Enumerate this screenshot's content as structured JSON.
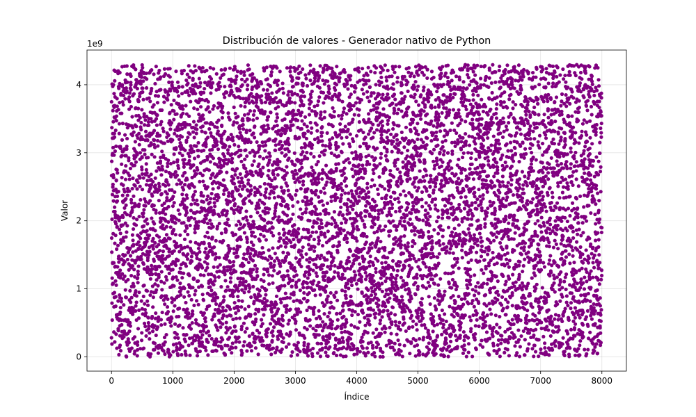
{
  "chart_data": {
    "type": "scatter",
    "title": "Distribución de valores - Generador nativo de Python",
    "xlabel": "Índice",
    "ylabel": "Valor",
    "y_offset_label": "1e9",
    "xlim": [
      -400,
      8400
    ],
    "ylim": [
      -210000000,
      4510000000
    ],
    "x_ticks": [
      0,
      1000,
      2000,
      3000,
      4000,
      5000,
      6000,
      7000,
      8000
    ],
    "x_tick_labels": [
      "0",
      "1000",
      "2000",
      "3000",
      "4000",
      "5000",
      "6000",
      "7000",
      "8000"
    ],
    "y_ticks": [
      0,
      1000000000,
      2000000000,
      3000000000,
      4000000000
    ],
    "y_tick_labels": [
      "0",
      "1",
      "2",
      "3",
      "4"
    ],
    "grid": true,
    "marker_color": "#800080",
    "point_count": 8000,
    "x_range": [
      0,
      7999
    ],
    "value_range": [
      0,
      4294967295
    ],
    "distribution": "uniform"
  }
}
